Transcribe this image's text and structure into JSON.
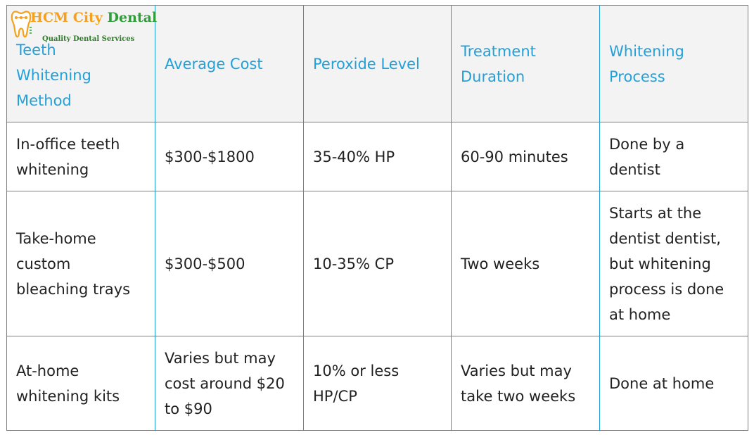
{
  "logo": {
    "brand_part1": "HCM City",
    "brand_part2": "Dental",
    "tagline": "Quality Dental Services",
    "icon": "tooth-icon",
    "colors": {
      "orange": "#f5a11d",
      "green": "#2f9e3a"
    }
  },
  "table": {
    "headers": [
      "Teeth Whitening Method",
      "Average Cost",
      "Peroxide Level",
      "Treatment Duration",
      "Whitening Process"
    ],
    "rows": [
      [
        "In-office teeth whitening",
        "$300-$1800",
        "35-40% HP",
        "60-90 minutes",
        "Done by a dentist"
      ],
      [
        "Take-home custom bleaching trays",
        "$300-$500",
        "10-35% CP",
        "Two weeks",
        "Starts at the dentist dentist, but whitening process is done at home"
      ],
      [
        "At-home whitening kits",
        "Varies but may cost around $20 to $90",
        "10% or less HP/CP",
        "Varies but may take two weeks",
        "Done at home"
      ]
    ],
    "colors": {
      "border": "#1e9fd6",
      "header_text": "#21a0d9",
      "header_bg": "#f3f3f3",
      "body_text": "#222222"
    }
  }
}
